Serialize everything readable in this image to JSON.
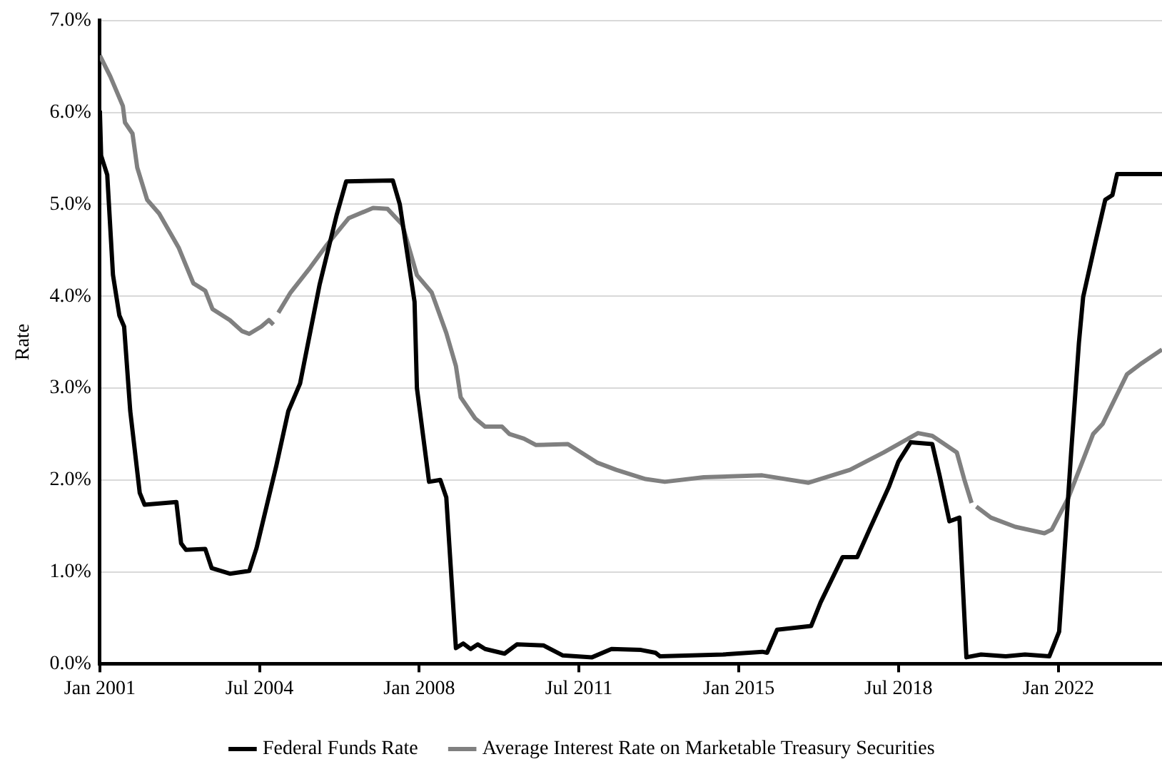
{
  "chart_data": {
    "type": "line",
    "ylabel": "Rate",
    "xlim": [
      "2001-01-01",
      "2024-04-09"
    ],
    "ylim": [
      0,
      7
    ],
    "xticks": [
      {
        "value": "2001-01-01",
        "label": "Jan 2001"
      },
      {
        "value": "2004-07-01",
        "label": "Jul 2004"
      },
      {
        "value": "2008-01-01",
        "label": "Jan 2008"
      },
      {
        "value": "2011-07-01",
        "label": "Jul 2011"
      },
      {
        "value": "2015-01-01",
        "label": "Jan 2015"
      },
      {
        "value": "2018-07-01",
        "label": "Jul 2018"
      },
      {
        "value": "2022-01-01",
        "label": "Jan 2022"
      }
    ],
    "yticks": [
      {
        "value": 0,
        "label": "0.0%"
      },
      {
        "value": 1,
        "label": "1.0%"
      },
      {
        "value": 2,
        "label": "2.0%"
      },
      {
        "value": 3,
        "label": "3.0%"
      },
      {
        "value": 4,
        "label": "4.0%"
      },
      {
        "value": 5,
        "label": "5.0%"
      },
      {
        "value": 6,
        "label": "6.0%"
      },
      {
        "value": 7,
        "label": "7.0%"
      }
    ],
    "grid": "y",
    "legend": "bottom",
    "marker": "none",
    "line_style": "solid",
    "series": [
      {
        "name": "Federal Funds Rate",
        "color": "#000000",
        "x": [
          "2001-01-01",
          "2001-01-11",
          "2001-03-01",
          "2001-04-16",
          "2001-06-06",
          "2001-07-14",
          "2001-09-01",
          "2001-11-16",
          "2001-12-25",
          "2002-09-05",
          "2002-10-13",
          "2002-11-21",
          "2003-04-24",
          "2003-06-15",
          "2003-11-07",
          "2004-04-10",
          "2004-06-08",
          "2004-11-12",
          "2005-02-17",
          "2005-05-22",
          "2005-10-26",
          "2006-03-10",
          "2006-05-26",
          "2007-06-03",
          "2007-07-29",
          "2007-11-24",
          "2007-12-13",
          "2008-03-19",
          "2008-06-17",
          "2008-08-04",
          "2008-10-20",
          "2008-12-18",
          "2009-02-15",
          "2009-04-13",
          "2009-06-11",
          "2009-11-13",
          "2010-02-20",
          "2010-09-20",
          "2011-02-23",
          "2011-10-14",
          "2012-03-18",
          "2012-11-09",
          "2013-03-04",
          "2013-04-11",
          "2014-08-28",
          "2015-07-07",
          "2015-08-15",
          "2015-11-03",
          "2016-08-01",
          "2016-10-17",
          "2017-04-10",
          "2017-08-05",
          "2017-11-11",
          "2018-04-14",
          "2018-07-01",
          "2018-10-07",
          "2019-03-29",
          "2019-05-26",
          "2019-08-13",
          "2019-11-01",
          "2019-12-27",
          "2020-04-22",
          "2020-11-06",
          "2021-04-09",
          "2021-10-20",
          "2022-01-07",
          "2022-04-13",
          "2022-06-14",
          "2022-07-18",
          "2022-10-23",
          "2023-01-11",
          "2023-03-09",
          "2023-04-16",
          "2024-04-09"
        ],
        "values": [
          6.02,
          5.53,
          5.32,
          4.23,
          3.79,
          3.67,
          2.75,
          1.86,
          1.73,
          1.76,
          1.31,
          1.24,
          1.25,
          1.04,
          0.98,
          1.01,
          1.26,
          2.15,
          2.75,
          3.05,
          4.13,
          4.88,
          5.25,
          5.26,
          5.0,
          3.94,
          3.0,
          1.98,
          2.0,
          1.81,
          0.17,
          0.22,
          0.16,
          0.21,
          0.16,
          0.11,
          0.21,
          0.2,
          0.09,
          0.07,
          0.16,
          0.15,
          0.12,
          0.08,
          0.1,
          0.13,
          0.12,
          0.37,
          0.41,
          0.67,
          1.16,
          1.16,
          1.46,
          1.92,
          2.2,
          2.41,
          2.39,
          2.05,
          1.55,
          1.59,
          0.07,
          0.1,
          0.08,
          0.1,
          0.08,
          0.35,
          2.3,
          3.49,
          3.99,
          4.58,
          5.05,
          5.1,
          5.33,
          5.33
        ]
      },
      {
        "name": "Average Interest Rate on Marketable Treasury Securities",
        "color": "#808080",
        "x": [
          "2001-01-01",
          "2001-03-26",
          "2001-07-04",
          "2001-07-21",
          "2001-09-19",
          "2001-10-27",
          "2002-01-14",
          "2002-04-20",
          "2002-09-23",
          "2003-01-19",
          "2003-04-24",
          "2003-06-21",
          "2003-11-07",
          "2004-02-12",
          "2004-04-10",
          "2004-07-16",
          "2004-09-14",
          "2004-10-21",
          "2004-11-05",
          "2004-11-29",
          "2005-03-07",
          "2005-08-10",
          "2005-12-23",
          "2006-06-16",
          "2006-12-27",
          "2007-04-22",
          "2007-08-18",
          "2007-12-13",
          "2008-04-09",
          "2008-08-04",
          "2008-10-20",
          "2008-11-27",
          "2009-03-23",
          "2009-06-11",
          "2009-10-24",
          "2009-12-22",
          "2010-04-17",
          "2010-07-23",
          "2011-04-04",
          "2011-11-22",
          "2012-04-25",
          "2012-12-16",
          "2013-05-19",
          "2014-03-26",
          "2015-07-07",
          "2016-07-12",
          "2017-06-08",
          "2018-03-06",
          "2018-12-05",
          "2019-03-29",
          "2019-10-11",
          "2019-12-09",
          "2020-02-06",
          "2020-02-20",
          "2020-03-15",
          "2020-07-10",
          "2021-01-21",
          "2021-09-11",
          "2021-11-09",
          "2022-03-23",
          "2022-10-06",
          "2022-12-21",
          "2023-07-04",
          "2023-10-29",
          "2024-04-09"
        ],
        "values": [
          6.62,
          6.39,
          6.07,
          5.89,
          5.77,
          5.4,
          5.05,
          4.9,
          4.53,
          4.14,
          4.06,
          3.86,
          3.74,
          3.62,
          3.59,
          3.67,
          3.74,
          3.69,
          null,
          3.82,
          4.04,
          4.31,
          4.56,
          4.85,
          4.96,
          4.95,
          4.78,
          4.23,
          4.04,
          3.6,
          3.24,
          2.9,
          2.67,
          2.58,
          2.58,
          2.5,
          2.45,
          2.38,
          2.39,
          2.19,
          2.11,
          2.01,
          1.98,
          2.03,
          2.05,
          1.97,
          2.11,
          2.3,
          2.51,
          2.48,
          2.3,
          2.01,
          1.75,
          null,
          1.71,
          1.59,
          1.49,
          1.42,
          1.46,
          1.81,
          2.5,
          2.61,
          3.15,
          3.27,
          3.42
        ]
      }
    ]
  }
}
